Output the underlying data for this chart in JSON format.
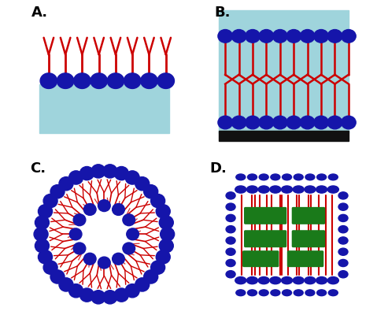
{
  "background": "#ffffff",
  "blue_color": "#1515aa",
  "red_color": "#cc0000",
  "green_color": "#1a7a1a",
  "cyan_color": "#9fd4dc",
  "black_color": "#111111",
  "label_fontsize": 13,
  "labels": [
    "A.",
    "B.",
    "C.",
    "D."
  ]
}
